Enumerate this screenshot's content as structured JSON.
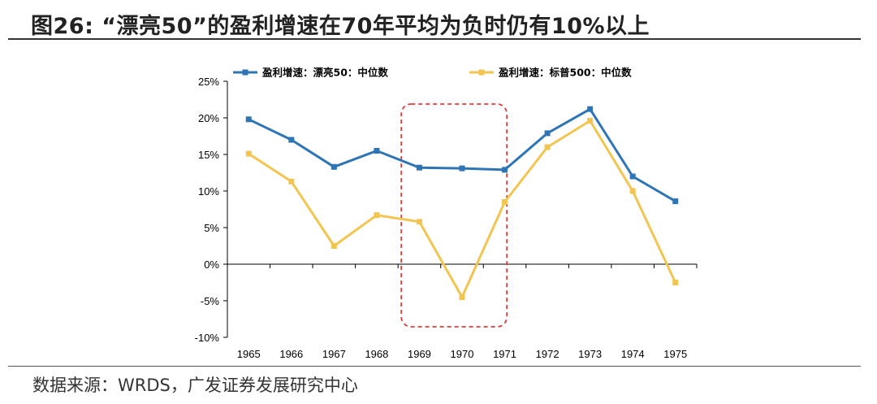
{
  "figure": {
    "title": "图26:   “漂亮50”的盈利增速在70年平均为负时仍有10%以上",
    "source": "数据来源：WRDS，广发证券发展研究中心"
  },
  "chart_data": {
    "type": "line",
    "categories": [
      "1965",
      "1966",
      "1967",
      "1968",
      "1969",
      "1970",
      "1971",
      "1972",
      "1973",
      "1974",
      "1975"
    ],
    "ylim": [
      -10,
      25
    ],
    "yticks": [
      "25%",
      "20%",
      "15%",
      "10%",
      "5%",
      "0%",
      "-5%",
      "-10%"
    ],
    "ytick_values": [
      25,
      20,
      15,
      10,
      5,
      0,
      -5,
      -10
    ],
    "series": [
      {
        "name": "盈利增速：漂亮50：中位数",
        "color": "#2E75B6",
        "values": [
          19.8,
          17.0,
          13.3,
          15.5,
          13.2,
          13.1,
          12.9,
          17.9,
          21.2,
          12.0,
          8.6
        ]
      },
      {
        "name": "盈利增速：标普500：中位数",
        "color": "#F1C550",
        "values": [
          15.1,
          11.3,
          2.5,
          6.7,
          5.8,
          -4.5,
          8.5,
          16.0,
          19.6,
          10.0,
          -2.5
        ]
      }
    ],
    "highlight": {
      "from": "1969",
      "to": "1971",
      "color": "#E03C3C"
    }
  }
}
